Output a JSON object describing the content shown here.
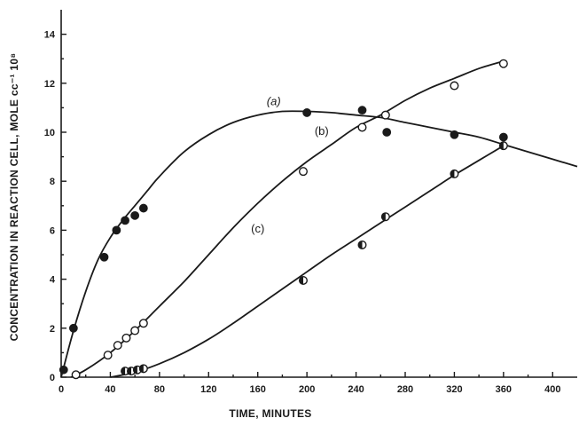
{
  "chart_data": {
    "type": "scatter",
    "xlabel": "TIME, MINUTES",
    "ylabel": "CONCENTRATION IN REACTION CELL, MOLE cc⁻¹ 10⁸",
    "xlim": [
      0,
      420
    ],
    "ylim": [
      0,
      15
    ],
    "xticks": [
      0,
      40,
      80,
      120,
      160,
      200,
      240,
      280,
      320,
      360,
      400
    ],
    "yticks": [
      0,
      2,
      4,
      6,
      8,
      10,
      12,
      14
    ],
    "grid": false,
    "legend": "none",
    "series": [
      {
        "name": "(a)",
        "marker": "filled",
        "x": [
          2,
          10,
          35,
          45,
          52,
          60,
          67,
          200,
          245,
          265,
          320,
          360
        ],
        "y": [
          0.3,
          2.0,
          4.9,
          6.0,
          6.4,
          6.6,
          6.9,
          10.8,
          10.9,
          10.0,
          9.9,
          9.8
        ],
        "curve": {
          "x": [
            0,
            10,
            20,
            30,
            40,
            50,
            60,
            70,
            80,
            100,
            120,
            140,
            160,
            180,
            200,
            220,
            240,
            260,
            280,
            300,
            320,
            340,
            360,
            380,
            400,
            420
          ],
          "y": [
            0.0,
            1.9,
            3.5,
            4.8,
            5.7,
            6.4,
            7.0,
            7.6,
            8.2,
            9.2,
            9.9,
            10.4,
            10.7,
            10.85,
            10.85,
            10.8,
            10.7,
            10.6,
            10.4,
            10.2,
            10.0,
            9.8,
            9.5,
            9.2,
            8.9,
            8.6
          ]
        }
      },
      {
        "name": "(b)",
        "marker": "open",
        "x": [
          12,
          38,
          46,
          53,
          60,
          67,
          197,
          245,
          264,
          320,
          360
        ],
        "y": [
          0.1,
          0.9,
          1.3,
          1.6,
          1.9,
          2.2,
          8.4,
          10.2,
          10.7,
          11.9,
          12.8
        ],
        "curve": {
          "x": [
            8,
            20,
            40,
            60,
            80,
            100,
            120,
            140,
            160,
            180,
            200,
            220,
            240,
            260,
            280,
            300,
            320,
            340,
            360
          ],
          "y": [
            0.0,
            0.3,
            1.0,
            1.9,
            2.9,
            3.9,
            5.0,
            6.1,
            7.1,
            8.0,
            8.8,
            9.5,
            10.2,
            10.7,
            11.3,
            11.8,
            12.2,
            12.6,
            12.9
          ]
        }
      },
      {
        "name": "(c)",
        "marker": "half-filled",
        "x": [
          52,
          57,
          62,
          67,
          197,
          245,
          264,
          320,
          360
        ],
        "y": [
          0.25,
          0.25,
          0.3,
          0.35,
          3.95,
          5.4,
          6.55,
          8.3,
          9.45
        ],
        "curve": {
          "x": [
            40,
            60,
            80,
            100,
            120,
            140,
            160,
            180,
            200,
            220,
            240,
            260,
            280,
            300,
            320,
            340,
            360
          ],
          "y": [
            0.0,
            0.2,
            0.55,
            1.0,
            1.55,
            2.2,
            2.9,
            3.6,
            4.3,
            5.0,
            5.65,
            6.3,
            6.95,
            7.6,
            8.25,
            8.85,
            9.45
          ]
        }
      }
    ],
    "annotations": [
      {
        "text": "(a)",
        "x": 173,
        "y": 11.1
      },
      {
        "text": "(b)",
        "x": 212,
        "y": 9.9
      },
      {
        "text": "(c)",
        "x": 160,
        "y": 5.9
      }
    ]
  }
}
